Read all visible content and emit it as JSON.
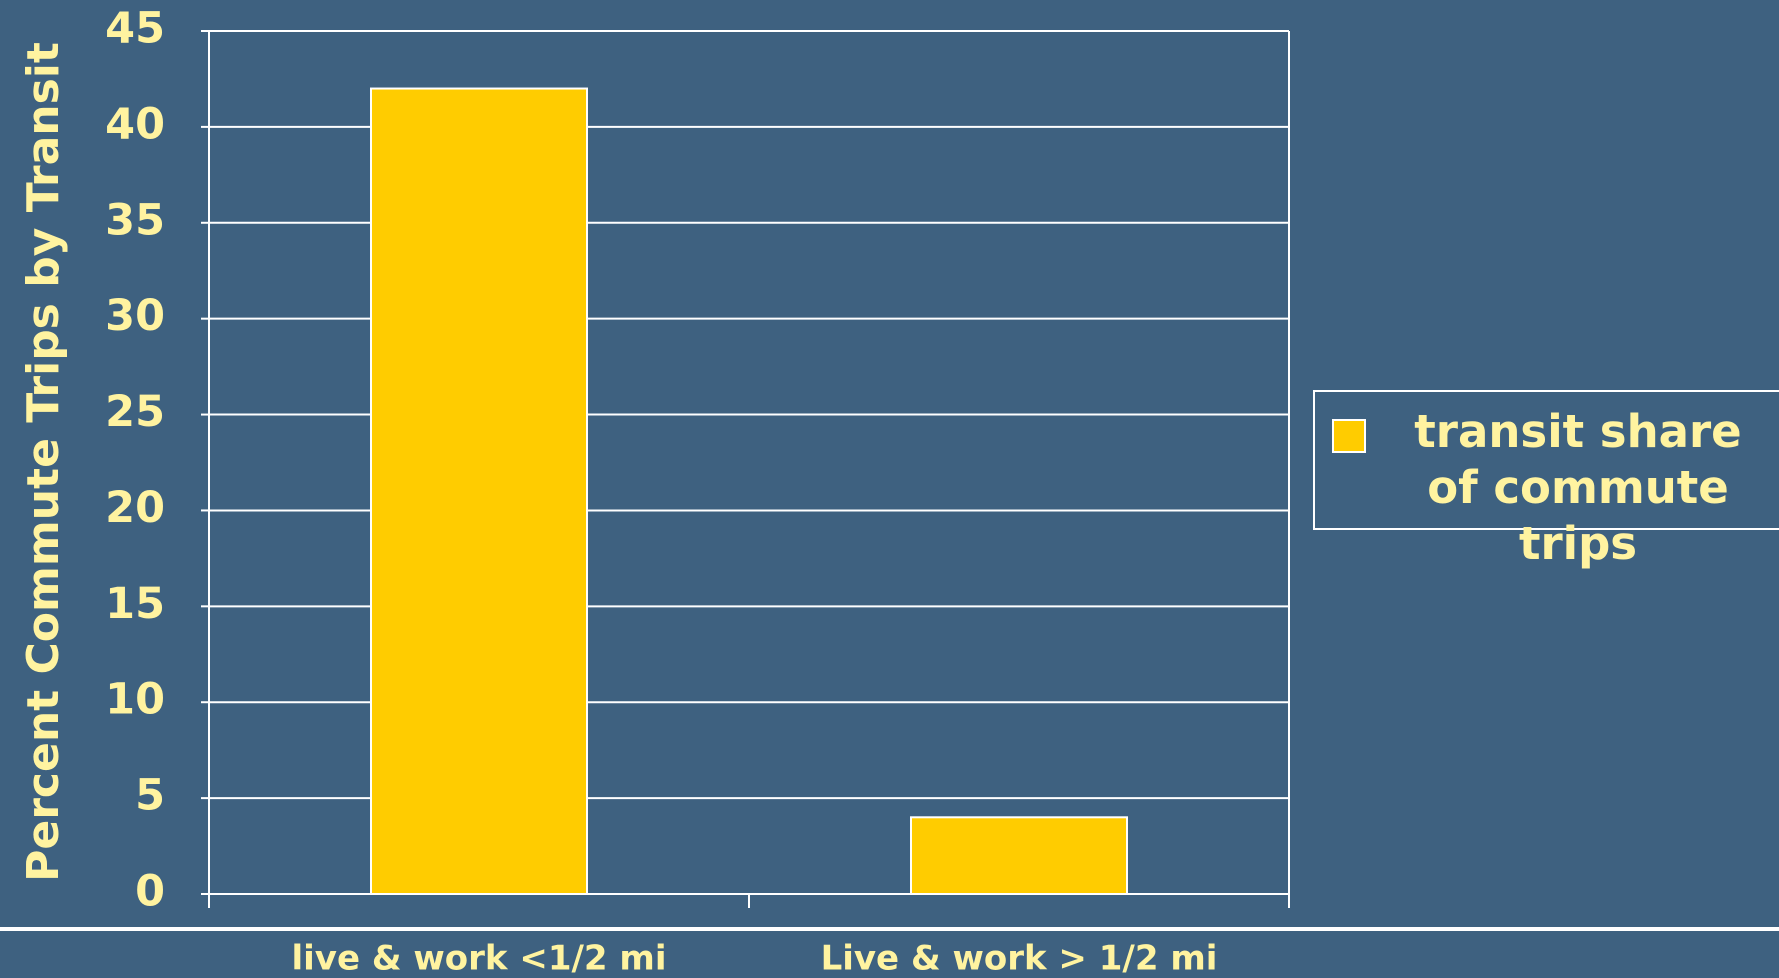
{
  "chart_data": {
    "type": "bar",
    "y_label": "Percent Commute Trips by Transit",
    "categories": [
      "live & work <1/2 mi",
      "Live & work > 1/2 mi"
    ],
    "series": [
      {
        "name": "transit share of commute trips",
        "color": "#ffcc00",
        "values": [
          42,
          4
        ]
      }
    ],
    "ylim": [
      0,
      45
    ],
    "yticks": [
      0,
      5,
      10,
      15,
      20,
      25,
      30,
      35,
      40,
      45
    ],
    "grid": true,
    "legend": "right"
  }
}
